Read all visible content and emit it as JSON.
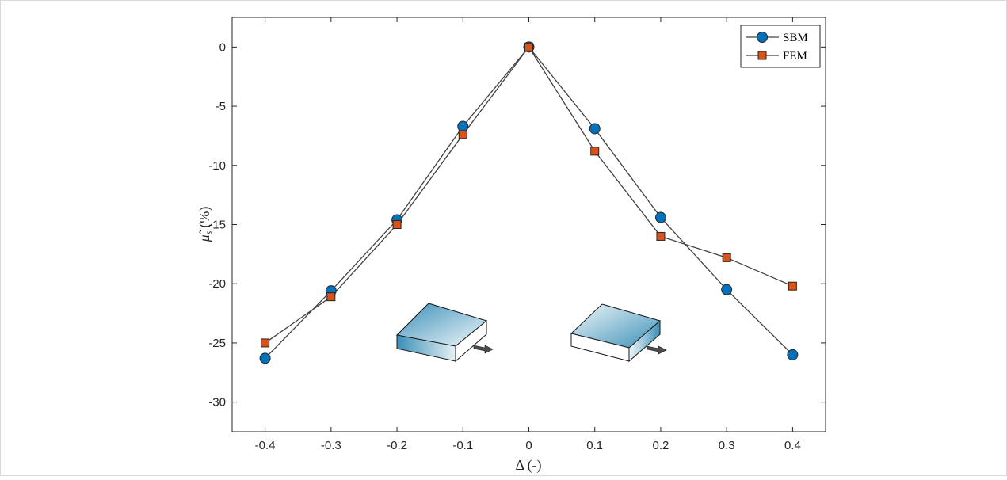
{
  "chart_data": {
    "type": "line",
    "title": "",
    "xlabel": "Δ (-)",
    "ylabel_main": "μ̃",
    "ylabel_sub": "s",
    "ylabel_unit": "(%)",
    "xlim": [
      -0.45,
      0.45
    ],
    "ylim": [
      -32.5,
      2.5
    ],
    "xticks": [
      -0.4,
      -0.3,
      -0.2,
      -0.1,
      0,
      0.1,
      0.2,
      0.3,
      0.4
    ],
    "yticks": [
      0,
      -5,
      -10,
      -15,
      -20,
      -25,
      -30
    ],
    "grid": false,
    "legend_position": "top-right",
    "x": [
      -0.4,
      -0.3,
      -0.2,
      -0.1,
      0,
      0.1,
      0.2,
      0.3,
      0.4
    ],
    "series": [
      {
        "name": "SBM",
        "marker": "circle",
        "color": "#0072BD",
        "values": [
          -26.3,
          -20.6,
          -14.6,
          -6.7,
          0,
          -6.9,
          -14.4,
          -20.5,
          -26.0
        ]
      },
      {
        "name": "FEM",
        "marker": "square",
        "color": "#D95319",
        "values": [
          -25.0,
          -21.1,
          -15.0,
          -7.4,
          0,
          -8.8,
          -16.0,
          -17.8,
          -20.2
        ]
      }
    ],
    "line_color": "#404040",
    "inset_colors": {
      "plate_dark": "#3a8fb7",
      "plate_light": "#f2f8fb",
      "edge": "#1a1a1a",
      "arrow": "#4d4d4d"
    }
  }
}
